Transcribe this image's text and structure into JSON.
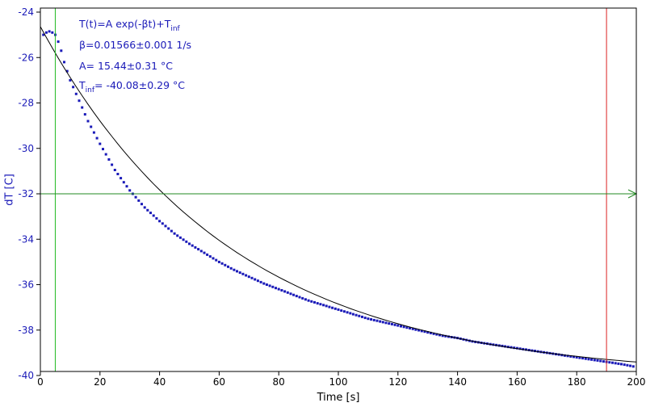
{
  "chart_data": {
    "type": "scatter",
    "xlabel": "Time [s]",
    "ylabel": "dT [C]",
    "xlim": [
      0,
      200
    ],
    "ylim": [
      -40,
      -24
    ],
    "xticks": [
      "0",
      "20",
      "40",
      "60",
      "80",
      "100",
      "120",
      "140",
      "160",
      "180",
      "200"
    ],
    "yticks": [
      "-24",
      "-26",
      "-28",
      "-30",
      "-32",
      "-34",
      "-36",
      "-38",
      "-40"
    ],
    "fit": {
      "model": "T(t)=A exp(-βt)+T_inf",
      "formula_main": "T(t)=A exp(-βt)+T",
      "formula_sub": "inf",
      "beta_text": "β=0.01566±0.001 1/s",
      "A_text": "A= 15.44±0.31 °C",
      "tinf_main": "T",
      "tinf_sub": "inf",
      "tinf_rest": "= -40.08±0.29 °C",
      "A": 15.44,
      "beta": 0.01566,
      "T_inf": -40.08
    },
    "series": [
      {
        "kind": "measured",
        "x": [
          1,
          2,
          3,
          4,
          5,
          6,
          7,
          8,
          9,
          10,
          12,
          14,
          16,
          18,
          20,
          25,
          30,
          35,
          40,
          45,
          50,
          55,
          60,
          65,
          70,
          75,
          80,
          85,
          90,
          95,
          100,
          105,
          110,
          115,
          120,
          125,
          130,
          135,
          140,
          145,
          150,
          155,
          160,
          165,
          170,
          175,
          180,
          185,
          190,
          195,
          199
        ],
        "y": [
          -25.0,
          -24.9,
          -24.85,
          -24.9,
          -25.0,
          -25.3,
          -25.7,
          -26.2,
          -26.6,
          -27.0,
          -27.6,
          -28.2,
          -28.8,
          -29.3,
          -29.8,
          -30.95,
          -31.85,
          -32.6,
          -33.2,
          -33.75,
          -34.2,
          -34.6,
          -35.0,
          -35.35,
          -35.65,
          -35.95,
          -36.2,
          -36.45,
          -36.7,
          -36.9,
          -37.1,
          -37.3,
          -37.5,
          -37.65,
          -37.8,
          -37.95,
          -38.1,
          -38.25,
          -38.35,
          -38.5,
          -38.6,
          -38.7,
          -38.8,
          -38.9,
          -39.0,
          -39.1,
          -39.2,
          -39.3,
          -39.4,
          -39.5,
          -39.6
        ],
        "color": "#1a1ab8"
      }
    ],
    "cursors": [
      {
        "kind": "vertical",
        "x": 5,
        "color": "#22bb22"
      },
      {
        "kind": "vertical",
        "x": 190,
        "color": "#dd2222"
      },
      {
        "kind": "horizontal",
        "y": -32,
        "color": "#228822"
      }
    ],
    "colors": {
      "markers": "#1a1ab8",
      "fit_curve": "#000000",
      "ytick_text": "#1a1ab8",
      "fit_text": "#1a1ab8"
    },
    "grid": false
  }
}
